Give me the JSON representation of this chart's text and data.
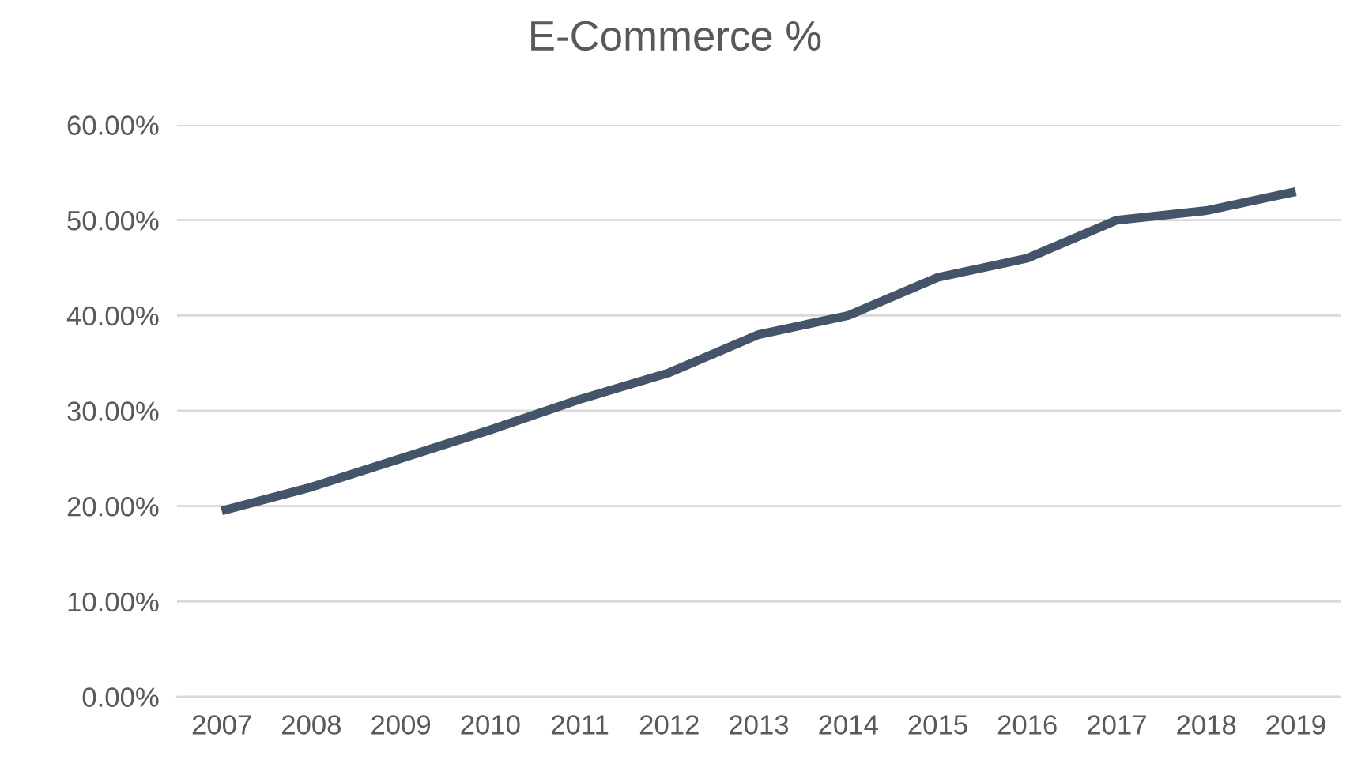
{
  "chart_data": {
    "type": "line",
    "title": "E-Commerce %",
    "categories": [
      "2007",
      "2008",
      "2009",
      "2010",
      "2011",
      "2012",
      "2013",
      "2014",
      "2015",
      "2016",
      "2017",
      "2018",
      "2019"
    ],
    "series": [
      {
        "color": "#44546a",
        "values": [
          19.5,
          22,
          25,
          28,
          31.2,
          34,
          38,
          40,
          44,
          46,
          50,
          51,
          53
        ]
      }
    ],
    "ylim": [
      0,
      60
    ],
    "yticks": [
      {
        "value": 0,
        "label": "0.00%"
      },
      {
        "value": 10,
        "label": "10.00%"
      },
      {
        "value": 20,
        "label": "20.00%"
      },
      {
        "value": 30,
        "label": "30.00%"
      },
      {
        "value": 40,
        "label": "40.00%"
      },
      {
        "value": 50,
        "label": "50.00%"
      },
      {
        "value": 60,
        "label": "60.00%"
      }
    ],
    "grid": "y",
    "marker": "none",
    "line_style": "solid"
  }
}
